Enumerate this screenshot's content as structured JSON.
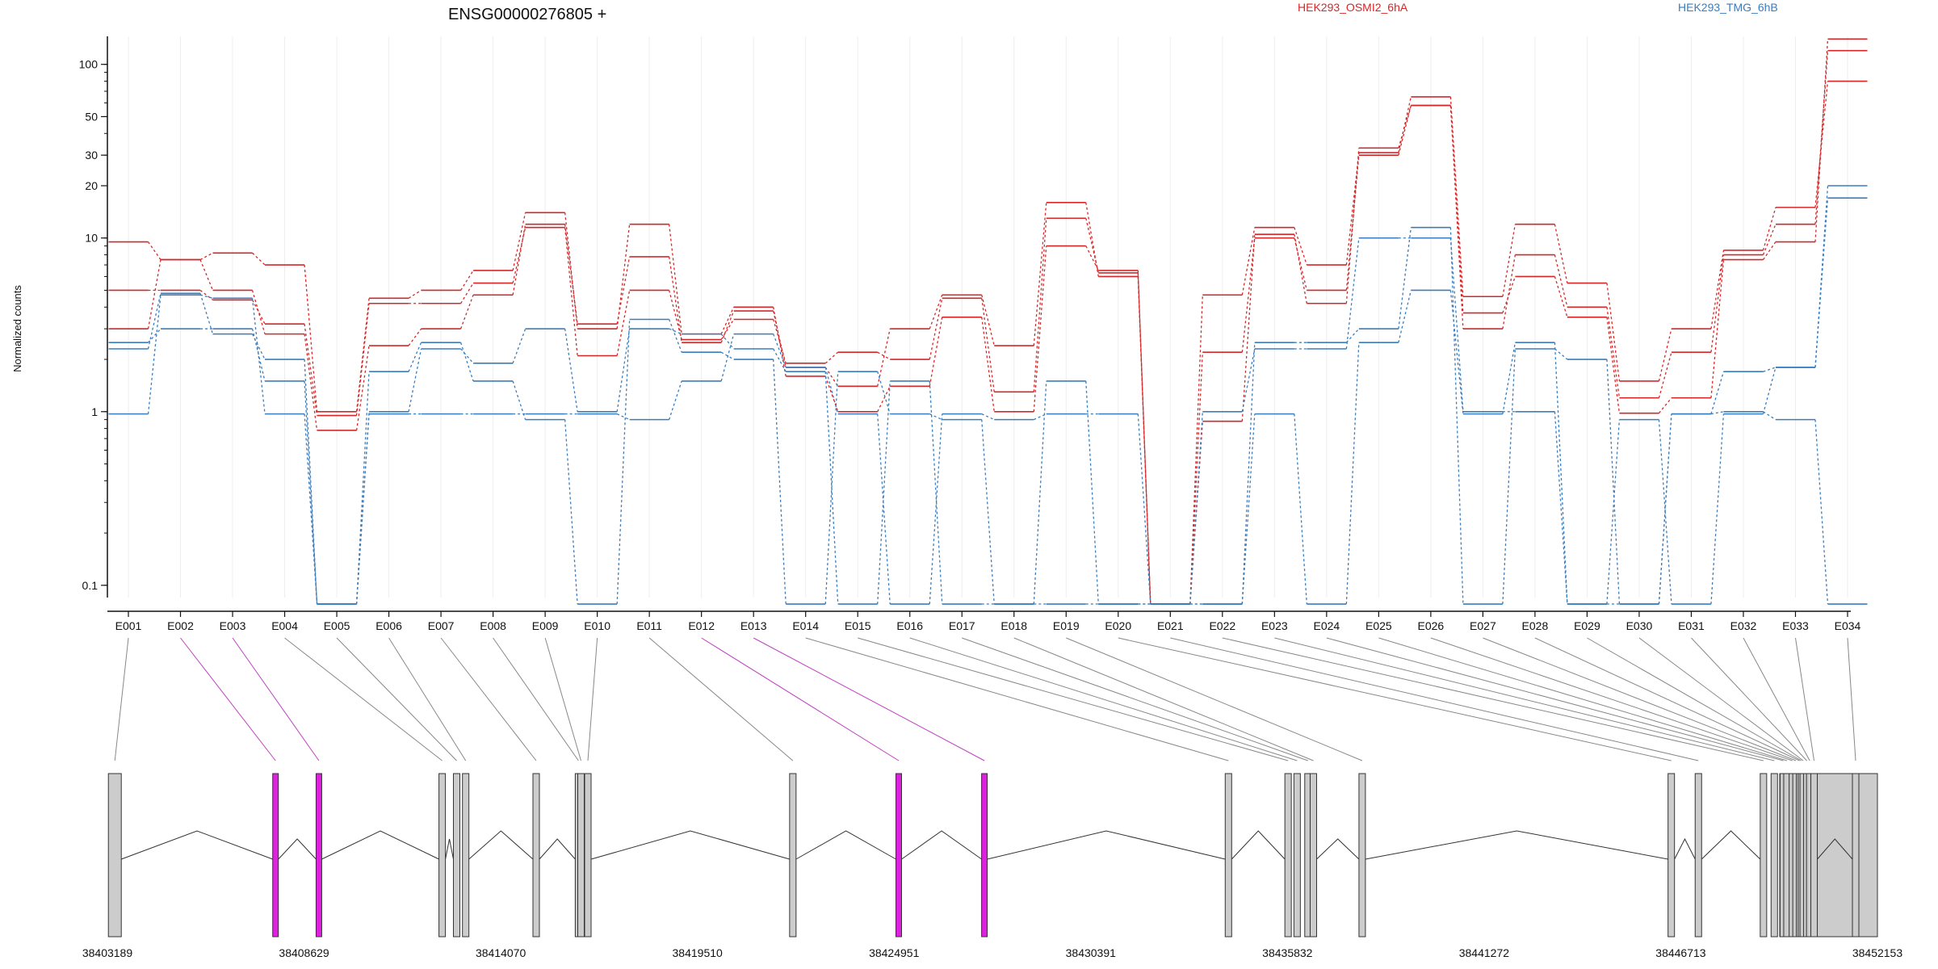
{
  "chart_data": {
    "type": "line",
    "title": "ENSG00000276805 +",
    "ylabel": "Normalized counts",
    "yscale": "log",
    "y_ticks": [
      "0.1",
      "1",
      "10",
      "20",
      "30",
      "50",
      "100"
    ],
    "y_tick_values": [
      0.1,
      1,
      10,
      20,
      30,
      50,
      100
    ],
    "ylim": [
      0.085,
      145
    ],
    "categories": [
      "E001",
      "E002",
      "E003",
      "E004",
      "E005",
      "E006",
      "E007",
      "E008",
      "E009",
      "E010",
      "E011",
      "E012",
      "E013",
      "E014",
      "E015",
      "E016",
      "E017",
      "E018",
      "E019",
      "E020",
      "E021",
      "E022",
      "E023",
      "E024",
      "E025",
      "E026",
      "E027",
      "E028",
      "E029",
      "E030",
      "E031",
      "E032",
      "E033",
      "E034"
    ],
    "legend": [
      {
        "label": "HEK293_OSMI2_6hA",
        "color": "#d62728"
      },
      {
        "label": "HEK293_TMG_6hB",
        "color": "#3a7dbd"
      }
    ],
    "series": [
      {
        "group": "HEK293_OSMI2_6hA",
        "color": "#d62728",
        "values": [
          9.5,
          7.5,
          8.2,
          7.0,
          1.0,
          4.5,
          5.0,
          6.5,
          14.0,
          3.0,
          12.0,
          2.8,
          4.0,
          1.6,
          1.0,
          1.4,
          3.5,
          1.0,
          9.0,
          6.5,
          0.078,
          0.88,
          10.5,
          4.2,
          33,
          58,
          3.7,
          6.0,
          3.5,
          0.98,
          1.2,
          7.5,
          9.5,
          140
        ]
      },
      {
        "group": "HEK293_OSMI2_6hA",
        "color": "#d62728",
        "values": [
          5.0,
          5.0,
          4.4,
          3.2,
          0.95,
          4.2,
          4.2,
          5.5,
          11.5,
          2.1,
          5.0,
          2.6,
          3.4,
          1.9,
          2.2,
          2.0,
          4.5,
          1.3,
          13,
          6.3,
          0.078,
          2.2,
          10.0,
          5.0,
          30,
          58,
          3.0,
          8.0,
          4.0,
          1.2,
          2.2,
          8.0,
          12.0,
          120
        ]
      },
      {
        "group": "HEK293_OSMI2_6hA",
        "color": "#d62728",
        "values": [
          3.0,
          7.5,
          5.0,
          2.8,
          0.78,
          2.4,
          3.0,
          4.7,
          12.0,
          3.2,
          7.8,
          2.5,
          3.8,
          1.8,
          1.4,
          3.0,
          4.7,
          2.4,
          16,
          6.0,
          0.078,
          4.7,
          11.5,
          7.0,
          31,
          65,
          4.6,
          12.0,
          5.5,
          1.5,
          3.0,
          8.5,
          15.0,
          80
        ]
      },
      {
        "group": "HEK293_TMG_6hB",
        "color": "#3a7dbd",
        "values": [
          2.3,
          4.8,
          2.8,
          2.0,
          0.078,
          1.0,
          2.3,
          1.9,
          3.0,
          1.0,
          3.0,
          2.8,
          2.3,
          1.7,
          0.078,
          1.5,
          0.078,
          0.078,
          1.5,
          0.078,
          0.078,
          1.0,
          2.3,
          2.3,
          10.0,
          10.0,
          1.0,
          1.0,
          0.078,
          0.078,
          0.97,
          1.7,
          1.8,
          20
        ]
      },
      {
        "group": "HEK293_TMG_6hB",
        "color": "#3a7dbd",
        "values": [
          2.5,
          3.0,
          3.0,
          1.5,
          0.078,
          1.7,
          2.5,
          1.5,
          0.9,
          0.078,
          3.4,
          2.2,
          2.0,
          0.078,
          1.7,
          0.97,
          0.9,
          0.078,
          0.078,
          0.078,
          0.078,
          0.078,
          0.97,
          0.078,
          2.5,
          5.0,
          0.97,
          2.5,
          0.078,
          0.9,
          0.078,
          0.97,
          1.8,
          17
        ]
      },
      {
        "group": "HEK293_TMG_6hB",
        "color": "#3a7dbd",
        "values": [
          0.97,
          4.7,
          4.5,
          0.97,
          0.078,
          0.97,
          0.97,
          0.97,
          0.97,
          0.97,
          0.9,
          1.5,
          2.8,
          1.8,
          0.97,
          0.078,
          0.97,
          0.9,
          0.97,
          0.97,
          0.078,
          0.078,
          2.5,
          2.5,
          3.0,
          11.5,
          0.078,
          2.3,
          2.0,
          0.078,
          0.97,
          1.0,
          0.9,
          0.078
        ]
      }
    ],
    "gene_model": {
      "coordinate_labels": [
        "38403189",
        "38408629",
        "38414070",
        "38419510",
        "38424951",
        "38430391",
        "38435832",
        "38441272",
        "38446713",
        "38452153"
      ],
      "axis_start": 38403189,
      "axis_end": 38452153,
      "highlight_color": "#e020e0",
      "exon_fill": "#cccccc",
      "highlighted_exons": [
        "E002",
        "E003",
        "E012",
        "E013"
      ],
      "exon_positions": [
        38403395,
        38407840,
        38409040,
        38412450,
        38412850,
        38413100,
        38415050,
        38416220,
        38416290,
        38416480,
        38422150,
        38425080,
        38427450,
        38434200,
        38435850,
        38436100,
        38436400,
        38436550,
        38437900,
        38446450,
        38447200,
        38449000,
        38449300,
        38449550,
        38449650,
        38449800,
        38449900,
        38450000,
        38450050,
        38450100,
        38450200,
        38450280,
        38450400,
        38451550
      ]
    }
  }
}
